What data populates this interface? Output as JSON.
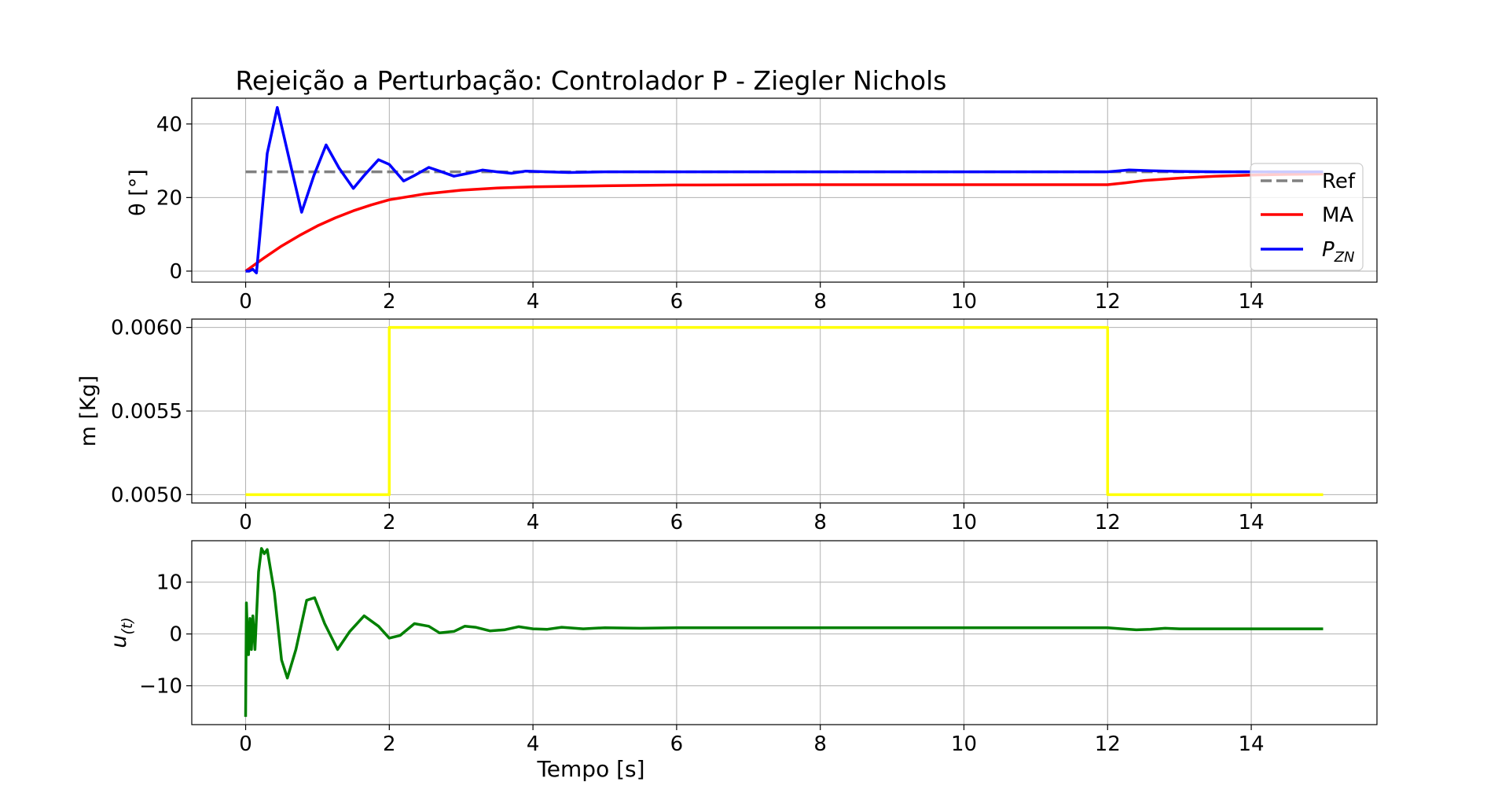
{
  "figure": {
    "title": "Rejeição a Perturbação: Controlador P - Ziegler Nichols",
    "xlabel": "Tempo [s]"
  },
  "colors": {
    "ref": "#808080",
    "ma": "#ff0000",
    "pzn": "#0000ff",
    "mass": "#ffff00",
    "control": "#008000",
    "grid": "#b0b0b0"
  },
  "chart_data": [
    {
      "type": "line",
      "ylabel": "θ [°]",
      "xlim": [
        -0.75,
        15.75
      ],
      "ylim": [
        -3,
        47
      ],
      "xticks": [
        0,
        2,
        4,
        6,
        8,
        10,
        12,
        14
      ],
      "yticks": [
        0,
        20,
        40
      ],
      "grid": true,
      "legend_position": "right",
      "series": [
        {
          "name": "Ref",
          "style": "dashed",
          "x": [
            0,
            15
          ],
          "y": [
            27,
            27
          ]
        },
        {
          "name": "MA",
          "x": [
            0,
            0.25,
            0.5,
            0.75,
            1.0,
            1.25,
            1.5,
            1.75,
            2.0,
            2.5,
            3.0,
            3.5,
            4.0,
            5.0,
            6.0,
            8.0,
            10.0,
            12.0,
            12.25,
            12.5,
            13.0,
            13.5,
            14.0,
            14.5,
            15.0
          ],
          "y": [
            0,
            3.5,
            6.8,
            9.7,
            12.3,
            14.5,
            16.4,
            18.0,
            19.4,
            21.0,
            22.0,
            22.6,
            22.9,
            23.2,
            23.4,
            23.5,
            23.5,
            23.5,
            24.0,
            24.6,
            25.3,
            25.8,
            26.1,
            26.3,
            26.4
          ]
        },
        {
          "name": "P_ZN",
          "label_main": "P",
          "label_sub": "ZN",
          "x": [
            0,
            0.05,
            0.1,
            0.15,
            0.2,
            0.3,
            0.44,
            0.6,
            0.78,
            0.95,
            1.12,
            1.3,
            1.5,
            1.65,
            1.85,
            2.0,
            2.2,
            2.35,
            2.55,
            2.7,
            2.9,
            3.1,
            3.3,
            3.5,
            3.7,
            3.9,
            4.2,
            4.5,
            5.0,
            6.0,
            8.0,
            10.0,
            12.0,
            12.3,
            12.6,
            13.0,
            13.5,
            14.0,
            15.0
          ],
          "y": [
            0,
            0,
            0.5,
            -0.5,
            10,
            32,
            44.5,
            31,
            16,
            26,
            34.3,
            28,
            22.5,
            26,
            30.3,
            29,
            24.5,
            26,
            28.2,
            27.2,
            25.8,
            26.6,
            27.5,
            27,
            26.6,
            27.2,
            27.0,
            26.8,
            27.0,
            27.0,
            27.0,
            27.0,
            27.0,
            27.5,
            27.3,
            27.1,
            27.0,
            27.0,
            27.0
          ]
        }
      ]
    },
    {
      "type": "line",
      "ylabel": "m [Kg]",
      "xlim": [
        -0.75,
        15.75
      ],
      "ylim": [
        0.00495,
        0.00605
      ],
      "xticks": [
        0,
        2,
        4,
        6,
        8,
        10,
        12,
        14
      ],
      "yticks": [
        0.005,
        0.0055,
        0.006
      ],
      "ytick_labels": [
        "0.0050",
        "0.0055",
        "0.0060"
      ],
      "grid": true,
      "series": [
        {
          "x": [
            0,
            2,
            2,
            12,
            12,
            15
          ],
          "y": [
            0.005,
            0.005,
            0.006,
            0.006,
            0.005,
            0.005
          ]
        }
      ]
    },
    {
      "type": "line",
      "ylabel": "u(t)",
      "ylabel_main": "u",
      "ylabel_sub": "(t)",
      "xlim": [
        -0.75,
        15.75
      ],
      "ylim": [
        -17.5,
        18
      ],
      "xticks": [
        0,
        2,
        4,
        6,
        8,
        10,
        12,
        14
      ],
      "yticks": [
        -10,
        0,
        10
      ],
      "ytick_labels": [
        "−10",
        "0",
        "10"
      ],
      "grid": true,
      "series": [
        {
          "x": [
            0,
            0.01,
            0.02,
            0.04,
            0.06,
            0.08,
            0.1,
            0.13,
            0.18,
            0.22,
            0.26,
            0.3,
            0.4,
            0.5,
            0.58,
            0.7,
            0.85,
            0.96,
            1.1,
            1.28,
            1.45,
            1.65,
            1.85,
            2.0,
            2.15,
            2.35,
            2.55,
            2.7,
            2.9,
            3.05,
            3.2,
            3.4,
            3.6,
            3.8,
            4.0,
            4.2,
            4.4,
            4.7,
            5.0,
            5.5,
            6.0,
            8.0,
            10.0,
            12.0,
            12.2,
            12.4,
            12.6,
            12.8,
            13.0,
            13.5,
            14.0,
            15.0
          ],
          "y": [
            -16,
            6,
            2,
            -4,
            3,
            -3,
            3.5,
            -3,
            12,
            16.5,
            15.5,
            16.3,
            8,
            -5,
            -8.5,
            -3,
            6.5,
            7,
            2,
            -3,
            0.5,
            3.5,
            1.5,
            -0.8,
            -0.3,
            2,
            1.5,
            0.2,
            0.5,
            1.5,
            1.3,
            0.6,
            0.8,
            1.4,
            1.0,
            0.9,
            1.3,
            1.0,
            1.2,
            1.1,
            1.2,
            1.2,
            1.2,
            1.2,
            1.0,
            0.8,
            0.9,
            1.1,
            1.0,
            1.0,
            1.0,
            1.0
          ]
        }
      ]
    }
  ]
}
